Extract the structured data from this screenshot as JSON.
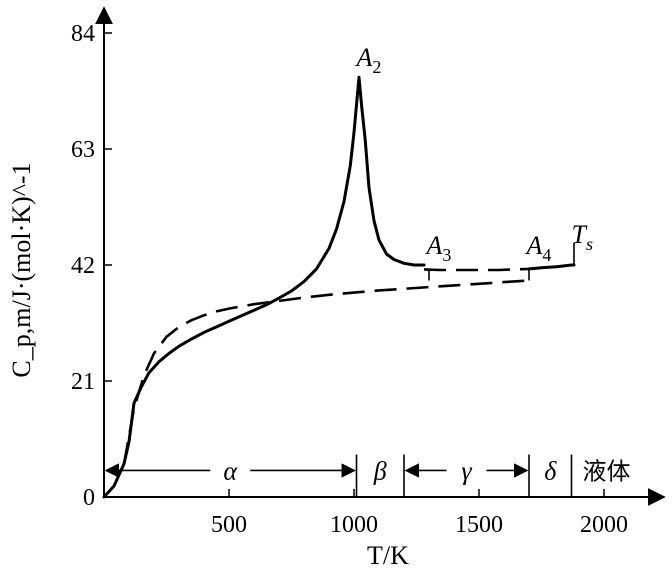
{
  "chart_data": {
    "type": "line",
    "title": "",
    "xlabel": "T/K",
    "ylabel": "C_p,m/J·(mol·K)^-1",
    "xlim": [
      0,
      2250
    ],
    "ylim": [
      0,
      86
    ],
    "x_ticks": [
      500,
      1000,
      1500,
      2000
    ],
    "y_ticks": [
      0,
      21,
      42,
      63,
      84
    ],
    "series": [
      {
        "style": "solid",
        "x": [
          0,
          40,
          80,
          100,
          120,
          150,
          180,
          220,
          260,
          300,
          350,
          400,
          450,
          500,
          550,
          600,
          650,
          700,
          750,
          800,
          850,
          900,
          930,
          960,
          985,
          1000,
          1010,
          1020,
          1030,
          1045,
          1060,
          1080,
          1100,
          1130,
          1160,
          1200,
          1240,
          1280
        ],
        "y": [
          0,
          2,
          6,
          10,
          17,
          20,
          22.5,
          24.5,
          26,
          27.3,
          28.6,
          29.8,
          30.8,
          31.8,
          32.8,
          33.8,
          34.8,
          36,
          37.3,
          39,
          41.3,
          45,
          48.5,
          53.5,
          60,
          66,
          71,
          76,
          71,
          64.5,
          56,
          50,
          46.5,
          44,
          43,
          42.3,
          42,
          42
        ]
      },
      {
        "style": "dashed",
        "x": [
          80,
          120,
          160,
          200,
          250,
          300,
          350,
          400,
          450,
          500,
          550,
          600,
          700,
          800,
          900,
          1000,
          1100,
          1200,
          1300,
          1400,
          1500,
          1600,
          1700
        ],
        "y": [
          6,
          16,
          22,
          26,
          29,
          30.8,
          32,
          32.9,
          33.6,
          34.1,
          34.5,
          34.9,
          35.5,
          36.1,
          36.6,
          37,
          37.4,
          37.7,
          38,
          38.3,
          38.6,
          38.9,
          39.2
        ]
      },
      {
        "style": "dashed",
        "x": [
          1280,
          1340,
          1400,
          1460,
          1520,
          1580,
          1640,
          1700
        ],
        "y": [
          41.2,
          41.1,
          41.1,
          41.1,
          41.1,
          41.1,
          41.2,
          41.3
        ]
      },
      {
        "style": "solid",
        "x": [
          1700,
          1750,
          1810,
          1870,
          1880
        ],
        "y": [
          41.3,
          41.5,
          41.7,
          42,
          42
        ]
      }
    ],
    "annotations": [
      {
        "text": "A",
        "sub": "2",
        "x": 1010,
        "y": 78
      },
      {
        "text": "A",
        "sub": "3",
        "x": 1290,
        "y": 44
      },
      {
        "text": "A",
        "sub": "4",
        "x": 1690,
        "y": 44
      },
      {
        "text": "T",
        "sub": "s",
        "x": 1870,
        "y": 46
      }
    ],
    "phases": [
      {
        "label": "α",
        "from": 0,
        "to": 1010
      },
      {
        "label": "β",
        "from": 1010,
        "to": 1200
      },
      {
        "label": "γ",
        "from": 1200,
        "to": 1700
      },
      {
        "label": "δ",
        "from": 1700,
        "to": 1870
      },
      {
        "label": "液体",
        "from": 1870,
        "to": 2150
      }
    ],
    "phase_band_y": 4.8,
    "markers": [
      {
        "x": 1300,
        "y_from": 39.2,
        "y_to": 41.2
      },
      {
        "x": 1700,
        "y_from": 39.2,
        "y_to": 41.3
      },
      {
        "x": 1880,
        "y_from": 42,
        "y_to": 46
      }
    ]
  }
}
